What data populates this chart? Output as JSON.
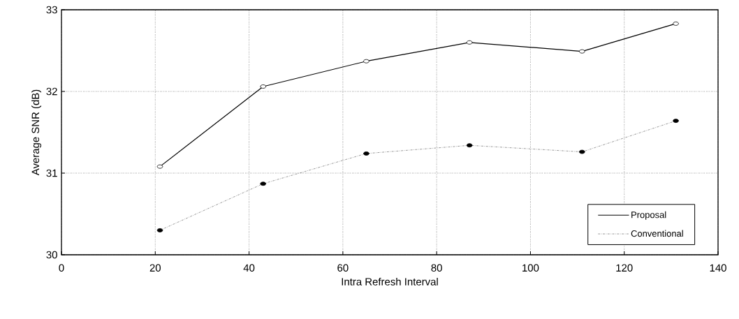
{
  "chart_data": {
    "type": "line",
    "xlabel": "Intra Refresh Interval",
    "ylabel": "Average SNR (dB)",
    "x": [
      21,
      43,
      65,
      87,
      111,
      131
    ],
    "series": [
      {
        "name": "Proposal",
        "color": "#000000",
        "marker": "circle",
        "line_style": "solid",
        "values": [
          31.08,
          32.06,
          32.37,
          32.6,
          32.49,
          32.83
        ]
      },
      {
        "name": "Conventional",
        "color": "#555555",
        "marker": "circle",
        "line_style": "dashdotted",
        "values": [
          30.3,
          30.87,
          31.24,
          31.34,
          31.26,
          31.64
        ]
      }
    ],
    "xlim": [
      0,
      140
    ],
    "xticks": [
      0,
      20,
      40,
      60,
      80,
      100,
      120,
      140
    ],
    "ylim": [
      30,
      33
    ],
    "yticks": [
      30,
      31,
      32,
      33
    ],
    "grid": true,
    "legend": "bottom right"
  }
}
